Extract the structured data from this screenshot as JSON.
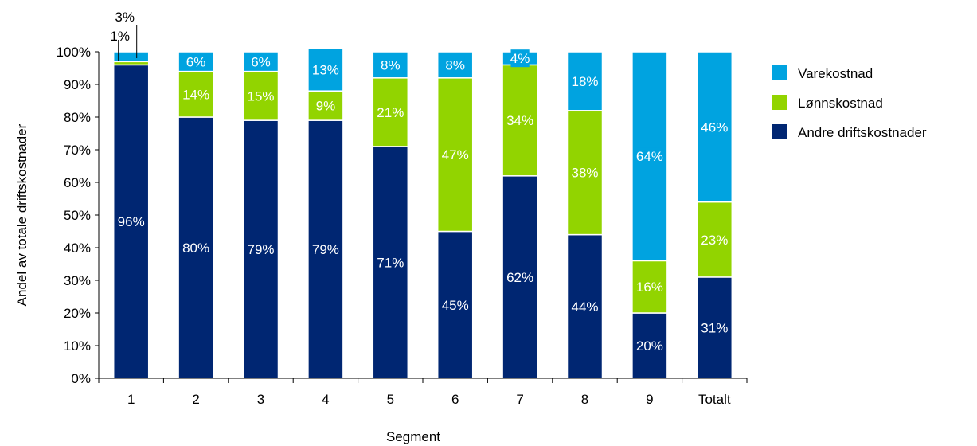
{
  "chart_data": {
    "type": "bar",
    "stacked": true,
    "normalized": true,
    "title": "",
    "xlabel": "Segment",
    "ylabel": "Andel av totale driftskostnader",
    "ylim": [
      0,
      100
    ],
    "y_ticks": [
      "0%",
      "10%",
      "20%",
      "30%",
      "40%",
      "50%",
      "60%",
      "70%",
      "80%",
      "90%",
      "100%"
    ],
    "y_tick_values": [
      0,
      10,
      20,
      30,
      40,
      50,
      60,
      70,
      80,
      90,
      100
    ],
    "categories": [
      "1",
      "2",
      "3",
      "4",
      "5",
      "6",
      "7",
      "8",
      "9",
      "Totalt"
    ],
    "grid": false,
    "legend_position": "right",
    "series": [
      {
        "name": "Andre driftskostnader",
        "color": "#002672",
        "values": [
          96,
          80,
          79,
          79,
          71,
          45,
          62,
          44,
          20,
          31
        ],
        "labels": [
          "96%",
          "80%",
          "79%",
          "79%",
          "71%",
          "45%",
          "62%",
          "44%",
          "20%",
          "31%"
        ]
      },
      {
        "name": "Lønnskostnad",
        "color": "#92D400",
        "values": [
          1,
          14,
          15,
          9,
          21,
          47,
          34,
          38,
          16,
          23
        ],
        "labels": [
          "1%",
          "14%",
          "15%",
          "9%",
          "21%",
          "47%",
          "34%",
          "38%",
          "16%",
          "23%"
        ]
      },
      {
        "name": "Varekostnad",
        "color": "#00A3E0",
        "values": [
          3,
          6,
          6,
          13,
          8,
          8,
          4,
          18,
          64,
          46
        ],
        "labels": [
          "3%",
          "6%",
          "6%",
          "13%",
          "8%",
          "8%",
          "4%",
          "18%",
          "64%",
          "46%"
        ]
      }
    ],
    "legend_order": [
      "Varekostnad",
      "Lønnskostnad",
      "Andre driftskostnader"
    ]
  }
}
